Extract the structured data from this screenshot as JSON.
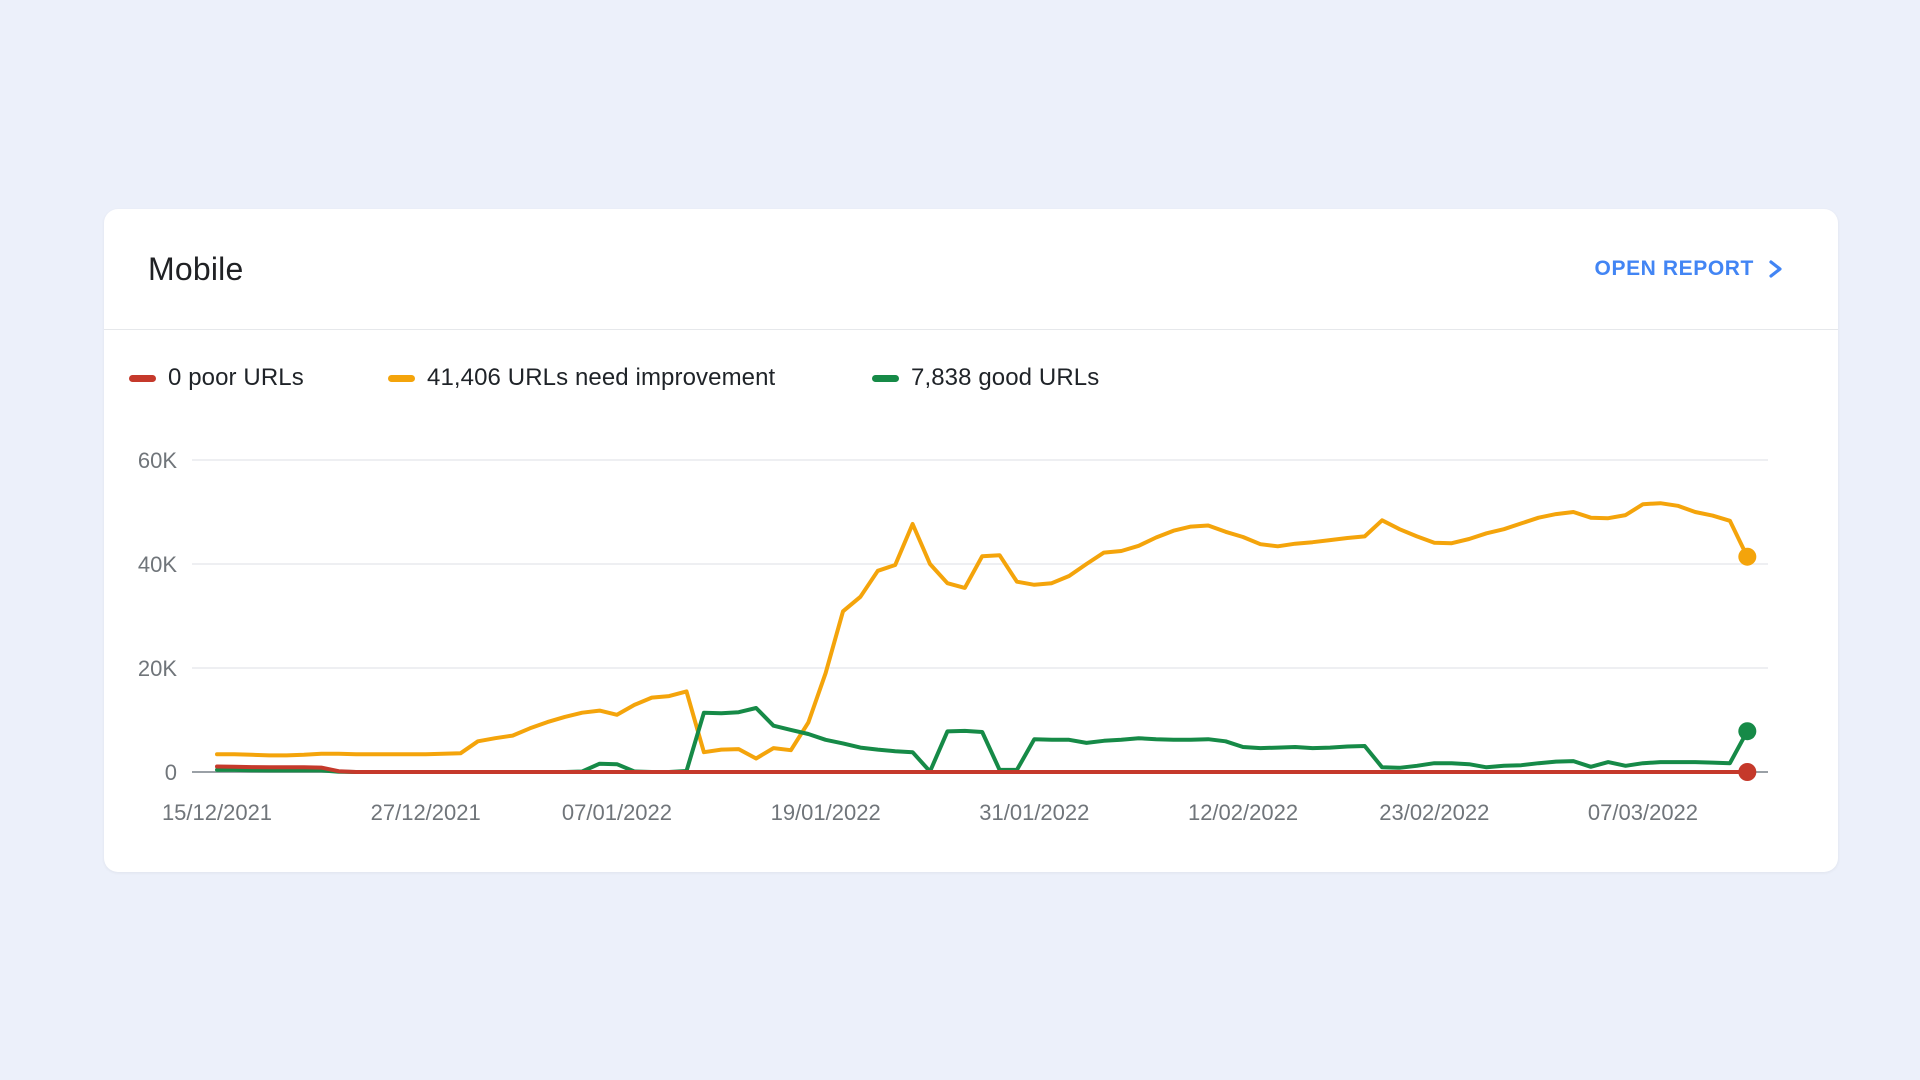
{
  "page": {
    "background_color": "#ECF0FA"
  },
  "card": {
    "title": "Mobile",
    "open_report_label": "OPEN REPORT",
    "accent_color": "#4285F4"
  },
  "chart_data": {
    "type": "line",
    "title": "Mobile",
    "grid": "horizontal",
    "legend_position": "top-left",
    "x_unit": "date (daily points)",
    "start_date": "15/12/2021",
    "x_tick_labels": [
      "15/12/2021",
      "27/12/2021",
      "07/01/2022",
      "19/01/2022",
      "31/01/2022",
      "12/02/2022",
      "23/02/2022",
      "07/03/2022"
    ],
    "x_tick_days": [
      0,
      12,
      23,
      35,
      47,
      59,
      70,
      82
    ],
    "ylim": [
      0,
      60000
    ],
    "y_ticks": [
      0,
      20000,
      40000,
      60000
    ],
    "y_tick_labels": [
      "0",
      "20K",
      "40K",
      "60K"
    ],
    "series": [
      {
        "name": "Poor URLs",
        "legend": "0 poor URLs",
        "color": "#C5392B",
        "latest": 0,
        "values": [
          1050,
          1000,
          950,
          900,
          900,
          900,
          850,
          150,
          0,
          0,
          0,
          0,
          0,
          0,
          0,
          0,
          0,
          0,
          0,
          0,
          0,
          0,
          0,
          0,
          0,
          0,
          0,
          0,
          0,
          0,
          0,
          0,
          0,
          0,
          0,
          0,
          0,
          0,
          0,
          0,
          0,
          0,
          0,
          0,
          0,
          0,
          0,
          0,
          0,
          0,
          0,
          0,
          0,
          0,
          0,
          0,
          0,
          0,
          0,
          0,
          0,
          0,
          0,
          0,
          0,
          0,
          0,
          0,
          0,
          0,
          0,
          0,
          0,
          0,
          0,
          0,
          0,
          0,
          0,
          0,
          0,
          0,
          0,
          0,
          0,
          0,
          0,
          0,
          0
        ]
      },
      {
        "name": "URLs need improvement",
        "legend": "41,406 URLs need improvement",
        "color": "#F4A40B",
        "latest": 41406,
        "values": [
          3400,
          3400,
          3300,
          3200,
          3200,
          3300,
          3500,
          3500,
          3400,
          3400,
          3400,
          3400,
          3400,
          3500,
          3600,
          5900,
          6500,
          7000,
          8400,
          9600,
          10600,
          11400,
          11800,
          11000,
          12900,
          14300,
          14600,
          15500,
          3800,
          4300,
          4400,
          2600,
          4600,
          4200,
          9500,
          19000,
          30900,
          33700,
          38700,
          39800,
          47700,
          40000,
          36300,
          35400,
          41500,
          41700,
          36600,
          36000,
          36300,
          37700,
          40000,
          42200,
          42500,
          43500,
          45100,
          46400,
          47200,
          47400,
          46200,
          45200,
          43800,
          43400,
          43900,
          44200,
          44600,
          45000,
          45300,
          48400,
          46700,
          45300,
          44100,
          44000,
          44800,
          45900,
          46700,
          47800,
          48900,
          49600,
          50000,
          48900,
          48800,
          49400,
          51500,
          51700,
          51200,
          50000,
          49300,
          48300,
          41406
        ]
      },
      {
        "name": "Good URLs",
        "legend": "7,838 good URLs",
        "color": "#168A47",
        "latest": 7838,
        "values": [
          400,
          400,
          350,
          300,
          300,
          350,
          300,
          50,
          0,
          0,
          0,
          0,
          0,
          0,
          0,
          0,
          0,
          0,
          0,
          0,
          0,
          100,
          1600,
          1500,
          100,
          0,
          0,
          200,
          11400,
          11300,
          11500,
          12300,
          8900,
          8100,
          7300,
          6200,
          5500,
          4700,
          4300,
          4000,
          3800,
          100,
          7800,
          7900,
          7700,
          400,
          400,
          6300,
          6200,
          6200,
          5600,
          6000,
          6200,
          6500,
          6300,
          6200,
          6200,
          6300,
          5900,
          4800,
          4600,
          4700,
          4800,
          4600,
          4700,
          4900,
          5000,
          900,
          800,
          1200,
          1700,
          1700,
          1500,
          900,
          1200,
          1300,
          1700,
          2000,
          2100,
          1000,
          1900,
          1200,
          1700,
          1900,
          1900,
          1900,
          1800,
          1700,
          7838
        ]
      }
    ]
  }
}
